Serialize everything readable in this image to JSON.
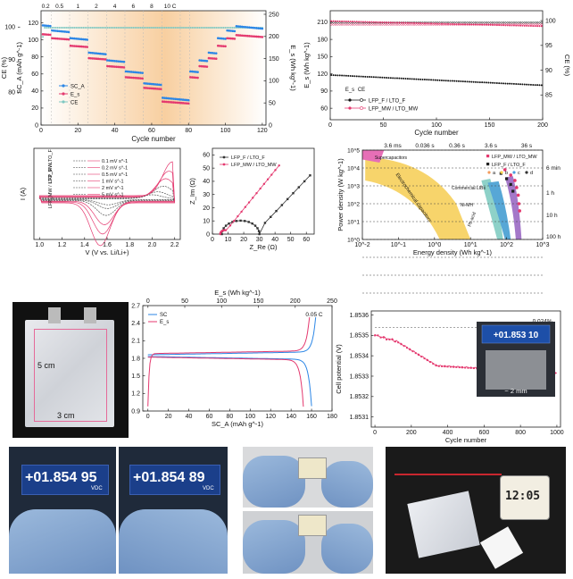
{
  "chart_data": [
    {
      "type": "scatter",
      "id": "rate",
      "xlabel": "Cycle number",
      "ylabel_ce": "CE (%)",
      "ylabel_sc": "SC_A (mAh g^-1)",
      "ylabel_es": "E_s (Wh kg^-1)",
      "xticks": [
        "0",
        "20",
        "40",
        "60",
        "80",
        "100",
        "120"
      ],
      "ce_ticks": [
        "80",
        "90",
        "100"
      ],
      "sc_ticks": [
        "0",
        "20",
        "40",
        "60",
        "80",
        "100",
        "120"
      ],
      "es_ticks": [
        "0",
        "50",
        "100",
        "150",
        "200",
        "250"
      ],
      "rates": [
        "0.2",
        "0.5",
        "1",
        "2",
        "4",
        "6",
        "8",
        "10 C"
      ],
      "legend": [
        "SC_A",
        "E_s",
        "CE"
      ],
      "segments": [
        {
          "x": [
            1,
            5
          ],
          "sc": 117,
          "es": 205
        },
        {
          "x": [
            6,
            15
          ],
          "sc": 111,
          "es": 196
        },
        {
          "x": [
            16,
            25
          ],
          "sc": 102,
          "es": 179
        },
        {
          "x": [
            26,
            35
          ],
          "sc": 85,
          "es": 151
        },
        {
          "x": [
            36,
            45
          ],
          "sc": 76,
          "es": 133
        },
        {
          "x": [
            46,
            55
          ],
          "sc": 63,
          "es": 108
        },
        {
          "x": [
            56,
            65
          ],
          "sc": 49,
          "es": 84
        },
        {
          "x": [
            66,
            75
          ],
          "sc": 32,
          "es": 53
        },
        {
          "x": [
            76,
            80
          ],
          "sc": 30,
          "es": 50
        },
        {
          "x": [
            81,
            85
          ],
          "sc": 63,
          "es": 108
        },
        {
          "x": [
            86,
            90
          ],
          "sc": 76,
          "es": 133
        },
        {
          "x": [
            91,
            95
          ],
          "sc": 85,
          "es": 151
        },
        {
          "x": [
            96,
            100
          ],
          "sc": 102,
          "es": 179
        },
        {
          "x": [
            101,
            105
          ],
          "sc": 111,
          "es": 196
        },
        {
          "x": [
            106,
            120
          ],
          "sc": 116,
          "es": 203
        }
      ]
    },
    {
      "type": "scatter",
      "id": "cycle",
      "xlabel": "Cycle number",
      "ylabel": "E_s (Wh kg^-1)",
      "ylabel_right": "CE (%)",
      "xticks": [
        "0",
        "50",
        "100",
        "150",
        "200"
      ],
      "yticks": [
        "60",
        "90",
        "120",
        "150",
        "180",
        "210"
      ],
      "ce_ticks": [
        "85",
        "90",
        "95",
        "100"
      ],
      "legend": [
        "LFP_F / LTO_F",
        "LFP_MW / LTO_MW"
      ],
      "legend_head": [
        "E_s",
        "CE"
      ],
      "series": [
        {
          "name": "LFP_F / LTO_F",
          "start": 118,
          "end": 100
        },
        {
          "name": "LFP_MW / LTO_MW",
          "start": 212,
          "end": 203
        }
      ]
    },
    {
      "type": "line",
      "id": "cv",
      "xlabel": "V (V vs. Li/Li+)",
      "ylabel": "I (A)",
      "xticks": [
        "1.0",
        "1.2",
        "1.4",
        "1.6",
        "1.8",
        "2.0",
        "2.2"
      ],
      "legend_left": [
        "LFP_F / LTO_F",
        "LFP_MW / LTO_MW"
      ],
      "legend": [
        "0.1 mV s^-1",
        "0.2 mV s^-1",
        "0.5 mV s^-1",
        "1 mV s^-1",
        "2 mV s^-1",
        "5 mV s^-1"
      ]
    },
    {
      "type": "line",
      "id": "eis",
      "xlabel": "Z_Re (Ω)",
      "ylabel": "Z_Im (Ω)",
      "xticks": [
        "0",
        "10",
        "20",
        "30",
        "40",
        "50",
        "60"
      ],
      "yticks": [
        "0",
        "10",
        "20",
        "30",
        "40",
        "50",
        "60"
      ],
      "legend": [
        "LFP_F / LTO_F",
        "LFP_MW / LTO_MW"
      ]
    },
    {
      "type": "scatter",
      "id": "ragone",
      "xlabel": "Energy density (Wh kg^-1)",
      "ylabel": "Power density (W kg^-1)",
      "xticks": [
        "10^-2",
        "10^-1",
        "10^0",
        "10^1",
        "10^2",
        "10^3"
      ],
      "yticks": [
        "10^0",
        "10^1",
        "10^2",
        "10^3",
        "10^4",
        "10^5"
      ],
      "time_top": [
        "3.6 ms",
        "0.036 s",
        "0.36 s",
        "3.6 s",
        "36 s"
      ],
      "time_right": [
        "6 min",
        "1 h",
        "10 h",
        "100 h"
      ],
      "regions": [
        "Supercapacitors",
        "Electrochemical capacitors",
        "Commercial LIBs",
        "Ni-MH",
        "Pb-acid"
      ],
      "legend": [
        "LFP_MW / LTO_MW",
        "LFP_F / LTO_F"
      ],
      "refs": [
        "a",
        "b",
        "c",
        "d"
      ]
    },
    {
      "type": "line",
      "id": "voltage",
      "xlabel": "SC_A (mAh g^-1)",
      "xlabel_top": "E_s (Wh kg^-1)",
      "ylabel": "V (V vs. Li/Li+)",
      "xticks": [
        "0",
        "20",
        "40",
        "60",
        "80",
        "100",
        "120",
        "140",
        "160",
        "180"
      ],
      "xticks_top": [
        "0",
        "50",
        "100",
        "150",
        "200",
        "250"
      ],
      "yticks": [
        "0.9",
        "1.2",
        "1.5",
        "1.8",
        "2.1",
        "2.4",
        "2.7"
      ],
      "legend": [
        "SC",
        "E_s"
      ],
      "annotation": "0.05 C"
    },
    {
      "type": "line",
      "id": "potential",
      "xlabel": "Cycle number",
      "ylabel": "Cell potential (V)",
      "xticks": [
        "0",
        "200",
        "400",
        "600",
        "800",
        "1000"
      ],
      "yticks": [
        "1.8531",
        "1.8532",
        "1.8533",
        "1.8534",
        "1.8535",
        "1.8536"
      ],
      "annotation": "0.024%",
      "inset_reading": "+01.853 10",
      "inset_label": "~ 2 mm"
    }
  ],
  "photo_pouch": {
    "w_label": "3 cm",
    "h_label": "5 cm"
  },
  "photos": {
    "meter1": "+01.854 95",
    "meter2": "+01.854 89",
    "unit": "VDC",
    "clock": "12:05"
  }
}
